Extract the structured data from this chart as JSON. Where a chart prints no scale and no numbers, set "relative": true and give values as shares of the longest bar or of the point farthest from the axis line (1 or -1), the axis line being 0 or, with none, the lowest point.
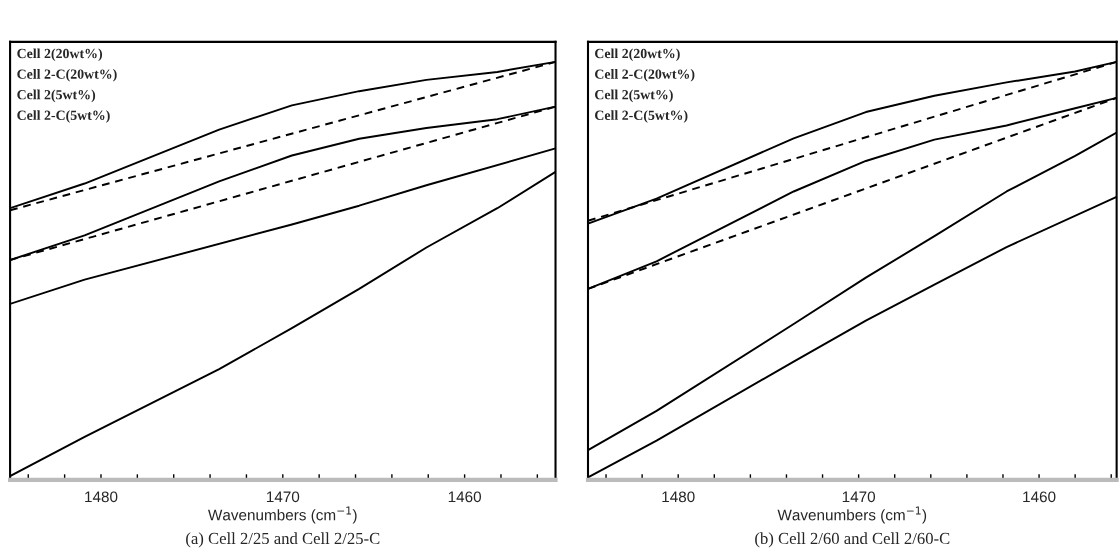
{
  "chart_data": [
    {
      "type": "line",
      "title": "(a) Cell 2/25 and Cell 2/25-C",
      "xlabel": "Wavenumbers (cm$^{−1}$)",
      "relative": true,
      "tick_labels": "x",
      "grid": false,
      "legend": false,
      "marker": "none",
      "annotations": [
        "Cell 2(20wt%)",
        "Cell 2-C(20wt%)",
        "Cell 2(5wt%)",
        "Cell 2-C(5wt%)"
      ],
      "xlim": [
        1485,
        1455
      ],
      "xticks": [
        {
          "value": 1484,
          "label": null
        },
        {
          "value": 1482,
          "label": null
        },
        1480,
        {
          "value": 1478,
          "label": null
        },
        {
          "value": 1476,
          "label": null
        },
        {
          "value": 1474,
          "label": null
        },
        {
          "value": 1472,
          "label": null
        },
        1470,
        {
          "value": 1468,
          "label": null
        },
        {
          "value": 1466,
          "label": null
        },
        {
          "value": 1464,
          "label": null
        },
        {
          "value": 1462,
          "label": null
        },
        1460,
        {
          "value": 1458,
          "label": null
        },
        {
          "value": 1456,
          "label": null
        }
      ],
      "series": [
        {
          "color": "#000000",
          "line_style": "solid",
          "x": [
            1485,
            1480.9,
            1473.5,
            1469.5,
            1465.8,
            1462.1,
            1458.2,
            1455
          ],
          "values": [
            0.65,
            0.709,
            0.838,
            0.896,
            0.93,
            0.957,
            0.976,
            1
          ]
        },
        {
          "color": "#000000",
          "line_style": "dashed",
          "x": [
            1485,
            1455
          ],
          "values": [
            0.645,
            1
          ]
        },
        {
          "color": "#000000",
          "line_style": "solid",
          "x": [
            1485,
            1480.9,
            1473.5,
            1469.5,
            1465.8,
            1462.1,
            1458.2,
            1455
          ],
          "values": [
            0.526,
            0.585,
            0.714,
            0.776,
            0.816,
            0.842,
            0.863,
            0.893
          ]
        },
        {
          "color": "#000000",
          "line_style": "dashed",
          "x": [
            1485,
            1455
          ],
          "values": [
            0.526,
            0.893
          ]
        },
        {
          "color": "#000000",
          "line_style": "solid",
          "x": [
            1485,
            1480.9,
            1469.5,
            1465.8,
            1462.1,
            1455
          ],
          "values": [
            0.421,
            0.479,
            0.611,
            0.656,
            0.705,
            0.793
          ]
        },
        {
          "color": "#000000",
          "line_style": "solid",
          "x": [
            1485,
            1480.9,
            1473.5,
            1469.5,
            1465.8,
            1462.1,
            1458.2,
            1455
          ],
          "values": [
            0.009,
            0.103,
            0.265,
            0.363,
            0.457,
            0.556,
            0.65,
            0.737
          ]
        }
      ]
    },
    {
      "type": "line",
      "title": "(b) Cell 2/60 and Cell 2/60-C",
      "xlabel": "Wavenumbers (cm$^{−1}$)",
      "relative": true,
      "tick_labels": "x",
      "grid": false,
      "legend": false,
      "marker": "none",
      "annotations": [
        "Cell 2(20wt%)",
        "Cell 2-C(20wt%)",
        "Cell 2(5wt%)",
        "Cell 2-C(5wt%)"
      ],
      "xlim": [
        1485,
        1455.7
      ],
      "xticks": [
        {
          "value": 1484,
          "label": null
        },
        {
          "value": 1482,
          "label": null
        },
        1480,
        {
          "value": 1478,
          "label": null
        },
        {
          "value": 1476,
          "label": null
        },
        {
          "value": 1474,
          "label": null
        },
        {
          "value": 1472,
          "label": null
        },
        1470,
        {
          "value": 1468,
          "label": null
        },
        {
          "value": 1466,
          "label": null
        },
        {
          "value": 1464,
          "label": null
        },
        {
          "value": 1462,
          "label": null
        },
        1460,
        {
          "value": 1458,
          "label": null
        },
        {
          "value": 1456,
          "label": null
        }
      ],
      "series": [
        {
          "color": "#000000",
          "line_style": "solid",
          "x": [
            1485,
            1481.2,
            1473.6,
            1469.6,
            1465.8,
            1461.8,
            1458,
            1455.7
          ],
          "values": [
            0.613,
            0.673,
            0.817,
            0.88,
            0.919,
            0.951,
            0.977,
            1
          ]
        },
        {
          "color": "#000000",
          "line_style": "dashed",
          "x": [
            1485,
            1455.7
          ],
          "values": [
            0.62,
            1
          ]
        },
        {
          "color": "#000000",
          "line_style": "solid",
          "x": [
            1485,
            1481.2,
            1473.6,
            1469.6,
            1465.8,
            1461.8,
            1458,
            1455.7
          ],
          "values": [
            0.457,
            0.523,
            0.69,
            0.763,
            0.814,
            0.848,
            0.889,
            0.914
          ]
        },
        {
          "color": "#000000",
          "line_style": "dashed",
          "x": [
            1485,
            1455.7
          ],
          "values": [
            0.457,
            0.914
          ]
        },
        {
          "color": "#000000",
          "line_style": "solid",
          "x": [
            1485,
            1481.2,
            1473.6,
            1469.6,
            1465.8,
            1461.8,
            1458,
            1455.7
          ],
          "values": [
            0.071,
            0.165,
            0.373,
            0.484,
            0.583,
            0.69,
            0.775,
            0.831
          ]
        },
        {
          "color": "#000000",
          "line_style": "solid",
          "x": [
            1485,
            1481.2,
            1473.6,
            1469.6,
            1465.8,
            1461.8,
            1455.7
          ],
          "values": [
            0.006,
            0.094,
            0.283,
            0.381,
            0.467,
            0.557,
            0.677
          ]
        }
      ]
    }
  ]
}
